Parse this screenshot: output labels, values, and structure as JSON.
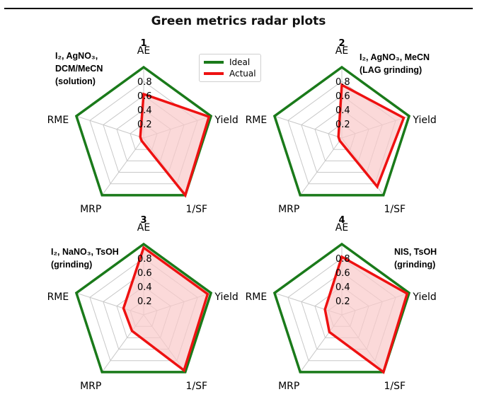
{
  "title": "Green metrics radar plots",
  "colors": {
    "ideal": "#1a7a1a",
    "actual": "#ee1111",
    "actual_fill": "#f9c9c9",
    "grid": "#c8c8c8"
  },
  "legend": {
    "ideal_label": "Ideal",
    "actual_label": "Actual"
  },
  "chart_data": [
    {
      "type": "radar",
      "panel": "1",
      "condition": [
        "I₂, AgNO₃,",
        "DCM/MeCN",
        "(solution)"
      ],
      "axes": [
        "AE",
        "Yield",
        "1/SF",
        "MRP",
        "RME"
      ],
      "radial_ticks": [
        "0.2",
        "0.4",
        "0.6",
        "0.8"
      ],
      "rlim": [
        0,
        1
      ],
      "series": [
        {
          "name": "Ideal",
          "values": [
            1,
            1,
            1,
            1,
            1
          ]
        },
        {
          "name": "Actual",
          "values": [
            0.62,
            0.97,
            1.0,
            0.05,
            0.05
          ]
        }
      ]
    },
    {
      "type": "radar",
      "panel": "2",
      "condition": [
        "I₂, AgNO₃, MeCN",
        "(LAG grinding)"
      ],
      "axes": [
        "AE",
        "Yield",
        "1/SF",
        "MRP",
        "RME"
      ],
      "radial_ticks": [
        "0.2",
        "0.4",
        "0.6",
        "0.8"
      ],
      "rlim": [
        0,
        1
      ],
      "series": [
        {
          "name": "Ideal",
          "values": [
            1,
            1,
            1,
            1,
            1
          ]
        },
        {
          "name": "Actual",
          "values": [
            0.75,
            0.92,
            0.85,
            0.05,
            0.05
          ]
        }
      ]
    },
    {
      "type": "radar",
      "panel": "3",
      "condition": [
        "I₂, NaNO₃, TsOH",
        "(grinding)"
      ],
      "axes": [
        "AE",
        "Yield",
        "1/SF",
        "MRP",
        "RME"
      ],
      "radial_ticks": [
        "0.2",
        "0.4",
        "0.6",
        "0.8"
      ],
      "rlim": [
        0,
        1
      ],
      "series": [
        {
          "name": "Ideal",
          "values": [
            1,
            1,
            1,
            1,
            1
          ]
        },
        {
          "name": "Actual",
          "values": [
            0.95,
            0.95,
            0.97,
            0.28,
            0.3
          ]
        }
      ]
    },
    {
      "type": "radar",
      "panel": "4",
      "condition": [
        "NIS, TsOH",
        "(grinding)"
      ],
      "axes": [
        "AE",
        "Yield",
        "1/SF",
        "MRP",
        "RME"
      ],
      "radial_ticks": [
        "0.2",
        "0.4",
        "0.6",
        "0.8"
      ],
      "rlim": [
        0,
        1
      ],
      "series": [
        {
          "name": "Ideal",
          "values": [
            1,
            1,
            1,
            1,
            1
          ]
        },
        {
          "name": "Actual",
          "values": [
            0.82,
            0.97,
            1.0,
            0.3,
            0.25
          ]
        }
      ]
    }
  ]
}
